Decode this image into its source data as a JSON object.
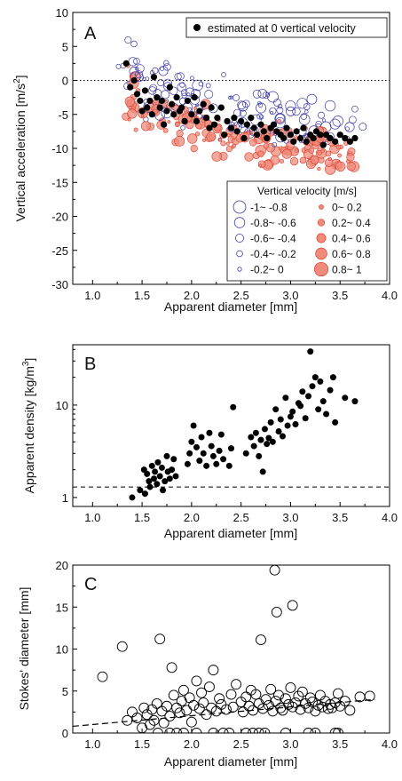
{
  "chart_data": [
    {
      "type": "scatter",
      "panel_label": "A",
      "xlabel": "Apparent diameter [mm]",
      "ylabel": "Vertical acceleration [m/s²]",
      "ylabel_main": "Vertical acceleration [m/s",
      "ylabel_sup": "2",
      "ylabel_close": "]",
      "xlim": [
        0.8,
        4.0
      ],
      "ylim": [
        -30,
        10
      ],
      "xticks": [
        1.0,
        1.5,
        2.0,
        2.5,
        3.0,
        3.5,
        4.0
      ],
      "xtick_labels": [
        "1.0",
        "1.5",
        "2.0",
        "2.5",
        "3.0",
        "3.5",
        "4.0"
      ],
      "yticks": [
        -30,
        -25,
        -20,
        -15,
        -10,
        -5,
        0,
        5,
        10
      ],
      "ytick_labels": [
        "-30",
        "-25",
        "-20",
        "-15",
        "-10",
        "-5",
        "0",
        "5",
        "10"
      ],
      "reference_line": {
        "y": 0,
        "style": "dotted"
      },
      "legend_top": {
        "label": "estimated at 0 vertical velocity",
        "placement": "top-right"
      },
      "legend_bins": {
        "title": "Vertical velocity [m/s]",
        "placement": "lower-right",
        "negative_labels": [
          "-1~ -0.8",
          "-0.8~ -0.6",
          "-0.6~ -0.4",
          "-0.4~ -0.2",
          "-0.2~ 0"
        ],
        "positive_labels": [
          "0~ 0.2",
          "0.2~ 0.4",
          "0.4~ 0.6",
          "0.6~ 0.8",
          "0.8~ 1"
        ]
      },
      "colors": {
        "negative": "#3a3aa8",
        "positive_fill": "#f08a7a",
        "positive_stroke": "#d9402f",
        "estimate": "#000000"
      },
      "series": [
        {
          "name": "estimated at 0 vertical velocity",
          "x": [
            1.34,
            1.38,
            1.42,
            1.45,
            1.48,
            1.5,
            1.53,
            1.55,
            1.58,
            1.6,
            1.62,
            1.65,
            1.68,
            1.7,
            1.72,
            1.75,
            1.78,
            1.8,
            1.82,
            1.85,
            1.88,
            1.9,
            1.93,
            1.96,
            2.0,
            2.03,
            2.05,
            2.08,
            2.12,
            2.15,
            2.18,
            2.2,
            2.23,
            2.26,
            2.3,
            2.33,
            2.36,
            2.4,
            2.43,
            2.46,
            2.5,
            2.53,
            2.56,
            2.6,
            2.63,
            2.66,
            2.7,
            2.73,
            2.76,
            2.8,
            2.83,
            2.86,
            2.9,
            2.93,
            2.96,
            3.0,
            3.03,
            3.06,
            3.1,
            3.13,
            3.16,
            3.2,
            3.23,
            3.26,
            3.3,
            3.33,
            3.36,
            3.4,
            3.45,
            3.5,
            3.55,
            3.6,
            3.65
          ],
          "y": [
            2.5,
            -1.0,
            0.0,
            -2.0,
            -3.0,
            -4.5,
            -1.5,
            -4.0,
            -3.0,
            -5.0,
            0.5,
            -2.5,
            -4.0,
            -3.0,
            -6.5,
            -4.5,
            -1.0,
            -3.5,
            -5.0,
            -2.5,
            -4.5,
            -4.0,
            -6.0,
            -3.0,
            -5.0,
            -2.5,
            -6.0,
            -4.5,
            -3.5,
            -5.5,
            -7.0,
            -4.0,
            -6.5,
            -5.5,
            -4.0,
            -8.0,
            -6.0,
            -7.0,
            -5.5,
            -7.5,
            -6.0,
            -8.5,
            -6.5,
            -5.5,
            -7.0,
            -8.0,
            -6.5,
            -7.5,
            -8.5,
            -7.0,
            -6.5,
            -7.5,
            -8.0,
            -8.5,
            -7.0,
            -8.0,
            -9.0,
            -7.5,
            -8.5,
            -7.0,
            -9.0,
            -8.0,
            -8.5,
            -7.5,
            -8.0,
            -9.5,
            -8.0,
            -8.5,
            -9.0,
            -8.0,
            -8.5,
            -9.0,
            -8.5
          ]
        }
      ]
    },
    {
      "type": "scatter",
      "panel_label": "B",
      "xlabel": "Apparent diameter [mm]",
      "ylabel": "Apparent density [kg/m³]",
      "ylabel_main": "Apparent density [kg/m",
      "ylabel_sup": "3",
      "ylabel_close": "]",
      "xlim": [
        0.8,
        4.0
      ],
      "ylim": [
        0.8,
        45
      ],
      "yscale": "log",
      "xticks": [
        1.0,
        1.5,
        2.0,
        2.5,
        3.0,
        3.5,
        4.0
      ],
      "xtick_labels": [
        "1.0",
        "1.5",
        "2.0",
        "2.5",
        "3.0",
        "3.5",
        "4.0"
      ],
      "yticks": [
        1,
        10
      ],
      "ytick_labels": [
        "1",
        "10"
      ],
      "reference_line": {
        "y": 1.3,
        "style": "dashed"
      },
      "series": [
        {
          "name": "",
          "x": [
            1.4,
            1.48,
            1.52,
            1.53,
            1.55,
            1.57,
            1.58,
            1.6,
            1.62,
            1.63,
            1.65,
            1.66,
            1.68,
            1.7,
            1.71,
            1.73,
            1.75,
            1.76,
            1.78,
            1.8,
            1.82,
            1.84,
            1.96,
            1.98,
            2.0,
            2.02,
            2.05,
            2.08,
            2.1,
            2.12,
            2.15,
            2.18,
            2.2,
            2.22,
            2.25,
            2.28,
            2.3,
            2.32,
            2.38,
            2.4,
            2.42,
            2.55,
            2.6,
            2.63,
            2.65,
            2.68,
            2.7,
            2.72,
            2.74,
            2.76,
            2.78,
            2.8,
            2.82,
            2.85,
            2.88,
            2.9,
            2.92,
            2.95,
            2.97,
            3.0,
            3.02,
            3.05,
            3.08,
            3.1,
            3.12,
            3.15,
            3.18,
            3.2,
            3.22,
            3.25,
            3.28,
            3.3,
            3.33,
            3.36,
            3.4,
            3.43,
            3.45,
            3.55,
            3.65
          ],
          "y": [
            1.0,
            1.2,
            2.0,
            1.1,
            1.8,
            1.5,
            1.3,
            2.2,
            1.6,
            1.9,
            1.4,
            2.4,
            1.7,
            2.1,
            1.2,
            1.5,
            2.8,
            1.9,
            1.6,
            2.0,
            2.6,
            1.7,
            2.3,
            3.0,
            4.0,
            6.0,
            3.5,
            2.5,
            4.5,
            3.0,
            2.2,
            5.0,
            3.6,
            2.8,
            2.3,
            3.2,
            4.8,
            2.6,
            2.2,
            3.4,
            9.5,
            3.0,
            4.5,
            3.6,
            5.0,
            2.8,
            4.2,
            1.9,
            5.5,
            3.8,
            4.4,
            6.5,
            4.0,
            9.0,
            5.2,
            7.0,
            4.6,
            12.0,
            6.0,
            7.5,
            8.5,
            6.2,
            10.5,
            9.8,
            14.0,
            7.2,
            12.5,
            38.0,
            16.0,
            20.0,
            9.0,
            18.0,
            11.0,
            8.0,
            14.5,
            20.0,
            6.5,
            12.0,
            11.0
          ]
        }
      ]
    },
    {
      "type": "scatter",
      "panel_label": "C",
      "xlabel": "Apparent diameter [mm]",
      "ylabel": "Stokes' diameter [mm]",
      "xlim": [
        0.8,
        4.0
      ],
      "ylim": [
        0,
        20
      ],
      "xticks": [
        1.0,
        1.5,
        2.0,
        2.5,
        3.0,
        3.5,
        4.0
      ],
      "xtick_labels": [
        "1.0",
        "1.5",
        "2.0",
        "2.5",
        "3.0",
        "3.5",
        "4.0"
      ],
      "yticks": [
        0,
        5,
        10,
        15,
        20
      ],
      "ytick_labels": [
        "0",
        "5",
        "10",
        "15",
        "20"
      ],
      "fit_line": {
        "style": "dashed",
        "x": [
          0.8,
          3.85
        ],
        "y": [
          0.8,
          4.0
        ]
      },
      "series": [
        {
          "name": "",
          "x": [
            1.1,
            1.3,
            1.35,
            1.4,
            1.45,
            1.5,
            1.52,
            1.55,
            1.58,
            1.6,
            1.62,
            1.65,
            1.68,
            1.7,
            1.72,
            1.75,
            1.78,
            1.8,
            1.82,
            1.85,
            1.88,
            1.9,
            1.92,
            1.95,
            1.98,
            2.0,
            2.02,
            2.05,
            2.08,
            2.1,
            2.12,
            2.15,
            2.18,
            2.2,
            2.22,
            2.25,
            2.28,
            2.3,
            2.35,
            2.4,
            2.42,
            2.45,
            2.5,
            2.52,
            2.55,
            2.58,
            2.6,
            2.62,
            2.65,
            2.68,
            2.7,
            2.72,
            2.75,
            2.78,
            2.8,
            2.82,
            2.85,
            2.88,
            2.9,
            2.92,
            2.95,
            2.98,
            3.0,
            3.02,
            3.05,
            3.08,
            3.1,
            3.12,
            3.15,
            3.18,
            3.2,
            3.22,
            3.25,
            3.28,
            3.3,
            3.32,
            3.35,
            3.38,
            3.4,
            3.42,
            3.45,
            3.48,
            3.5,
            3.55,
            3.6,
            3.7,
            3.8,
            2.84,
            2.86,
            3.02,
            2.74,
            2.32,
            1.66,
            1.78,
            1.85,
            1.92,
            2.05,
            2.22,
            2.38,
            2.55,
            2.62,
            2.68,
            2.95,
            3.18,
            3.25,
            3.45,
            3.48
          ],
          "y": [
            6.7,
            10.3,
            1.5,
            2.5,
            1.8,
            0.6,
            3.0,
            2.2,
            1.0,
            2.8,
            1.5,
            3.5,
            11.2,
            2.6,
            1.2,
            3.2,
            2.0,
            7.8,
            4.5,
            3.0,
            2.4,
            3.8,
            5.1,
            2.7,
            4.2,
            1.3,
            3.3,
            6.2,
            2.9,
            4.8,
            3.6,
            2.2,
            5.5,
            3.0,
            7.5,
            2.6,
            4.1,
            3.4,
            2.8,
            4.6,
            3.1,
            5.8,
            3.7,
            2.5,
            4.3,
            3.2,
            5.1,
            2.7,
            4.6,
            3.5,
            11.1,
            2.9,
            4.0,
            3.3,
            5.2,
            2.6,
            3.8,
            4.5,
            3.0,
            2.7,
            4.1,
            3.4,
            5.4,
            3.1,
            3.6,
            4.4,
            2.8,
            4.9,
            3.5,
            3.0,
            4.2,
            3.7,
            2.6,
            3.3,
            4.5,
            3.1,
            3.8,
            2.9,
            3.4,
            3.0,
            3.6,
            4.7,
            3.2,
            3.8,
            2.7,
            4.3,
            4.4,
            19.4,
            14.4,
            15.2,
            0,
            0,
            0,
            0,
            0,
            0,
            0,
            0,
            0,
            0,
            0,
            0,
            0,
            0,
            0,
            0,
            0
          ]
        }
      ]
    }
  ]
}
